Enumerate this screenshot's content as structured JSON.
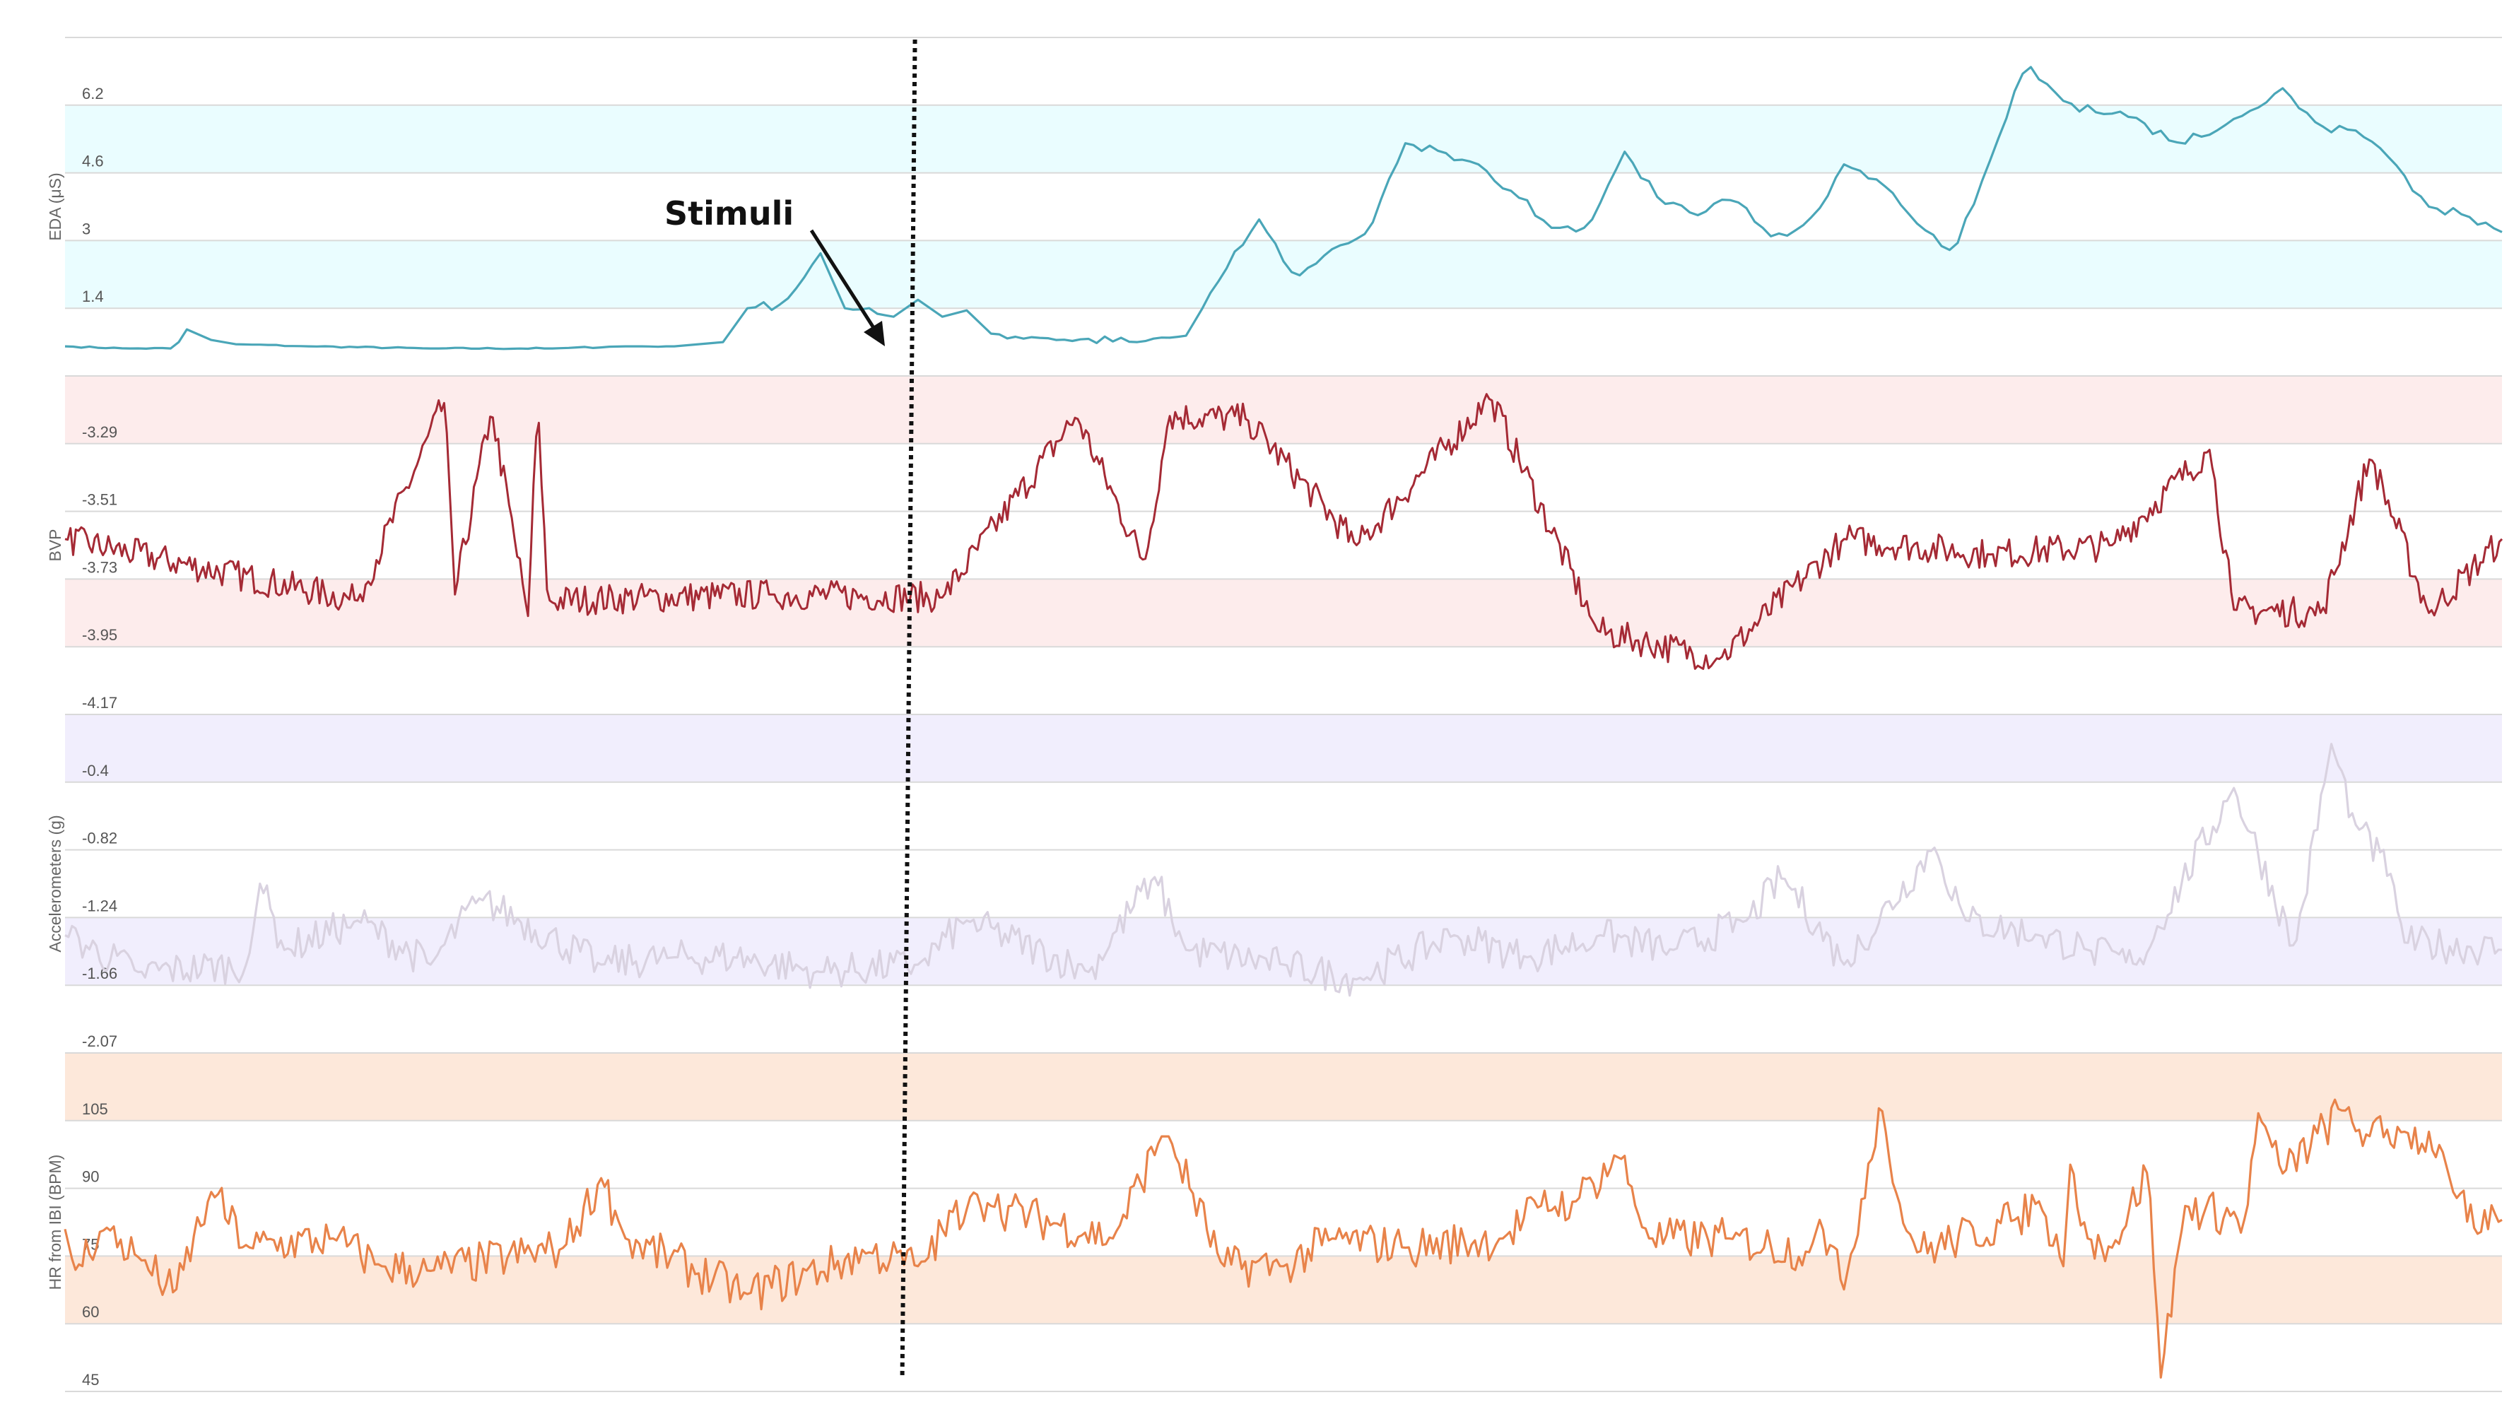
{
  "chart_data": [
    {
      "type": "line",
      "ylabel": "EDA (μS)",
      "ytick_labels": [
        "6.2",
        "4.6",
        "3",
        "1.4"
      ],
      "ylim": [
        -0.2,
        7.8
      ],
      "band_color": "#eafdff",
      "line_color": "#4aa6b8",
      "series": [
        {
          "x": [
            0,
            2.5,
            4.5,
            5,
            6,
            7,
            10,
            15,
            20,
            23,
            25,
            26,
            27,
            28,
            29.5,
            31,
            32,
            34,
            35,
            36,
            37,
            38,
            40,
            44,
            46,
            47.5,
            49,
            50.5,
            52,
            53.5,
            55,
            56.5,
            58,
            59.5,
            61,
            62.5,
            64,
            65.5,
            67,
            68.5,
            70,
            71.5,
            73,
            74.5,
            76,
            77.5,
            79,
            80.5,
            82,
            83.5,
            85,
            86.5,
            88,
            89.5,
            91,
            92.5,
            94,
            95.5,
            97,
            98.5,
            100
          ],
          "y": [
            0.5,
            0.45,
            0.45,
            0.9,
            0.65,
            0.55,
            0.5,
            0.45,
            0.45,
            0.5,
            0.5,
            0.55,
            0.6,
            1.4,
            1.5,
            2.7,
            1.4,
            1.2,
            1.6,
            1.2,
            1.35,
            0.8,
            0.7,
            0.6,
            0.75,
            2.2,
            3.5,
            2.1,
            2.8,
            3.2,
            5.3,
            5.1,
            4.8,
            4.1,
            3.3,
            3.3,
            5.1,
            3.9,
            3.6,
            4.0,
            3.1,
            3.4,
            4.8,
            4.4,
            3.4,
            2.7,
            4.9,
            7.2,
            6.3,
            6.0,
            5.9,
            5.3,
            5.5,
            6.0,
            6.6,
            5.7,
            5.6,
            4.9,
            3.8,
            3.6,
            3.2
          ]
        }
      ]
    },
    {
      "type": "line",
      "ylabel": "BVP",
      "ytick_labels": [
        "-3.29",
        "-3.51",
        "-3.73",
        "-3.95",
        "-4.17"
      ],
      "ylim": [
        -4.17,
        -3.07
      ],
      "band_color": "#fdecec",
      "line_color": "#a52a35",
      "series": [
        {
          "x": [
            0,
            12,
            15.6,
            16,
            17.5,
            19,
            19.4,
            19.8,
            29,
            36,
            41.5,
            44.3,
            45.3,
            48.5,
            53,
            58.5,
            62.9,
            67.9,
            73,
            79,
            84,
            88,
            89,
            92.6,
            94.6,
            97,
            100
          ],
          "y": [
            -3.6,
            -3.8,
            -3.15,
            -3.78,
            -3.18,
            -3.85,
            -3.15,
            -3.8,
            -3.78,
            -3.79,
            -3.2,
            -3.68,
            -3.2,
            -3.21,
            -3.62,
            -3.14,
            -3.9,
            -3.99,
            -3.6,
            -3.65,
            -3.62,
            -3.31,
            -3.83,
            -3.84,
            -3.33,
            -3.84,
            -3.6
          ]
        }
      ]
    },
    {
      "type": "line",
      "ylabel": "Accelerometers (g)",
      "ytick_labels": [
        "-0.4",
        "-0.82",
        "-1.24",
        "-1.66",
        "-2.07"
      ],
      "ylim": [
        -2.5,
        -0.2
      ],
      "band_color": "#f1eefd",
      "line_color": "#d9d2e0",
      "series": [
        {
          "x": [
            0,
            3,
            7.5,
            8,
            9,
            12,
            15,
            17,
            22,
            25,
            27.5,
            31,
            35,
            37,
            42,
            44.7,
            46,
            50,
            53,
            57,
            60,
            63,
            66,
            69,
            70.5,
            73,
            76.7,
            78,
            81,
            83,
            85,
            89,
            91.5,
            93,
            94,
            95.5,
            96,
            100
          ],
          "y": [
            -1.7,
            -1.95,
            -1.9,
            -1.35,
            -1.8,
            -1.6,
            -1.9,
            -1.45,
            -1.9,
            -1.85,
            -1.85,
            -1.95,
            -1.9,
            -1.6,
            -1.95,
            -1.3,
            -1.8,
            -1.9,
            -2.0,
            -1.7,
            -1.85,
            -1.7,
            -1.8,
            -1.6,
            -1.3,
            -1.9,
            -1.1,
            -1.6,
            -1.7,
            -1.8,
            -1.9,
            -0.7,
            -1.8,
            -0.4,
            -0.95,
            -1.3,
            -1.75,
            -1.8
          ]
        }
      ]
    },
    {
      "type": "line",
      "ylabel": "HR from IBI (BPM)",
      "ytick_labels": [
        "105",
        "90",
        "75",
        "60",
        "45"
      ],
      "ylim": [
        45,
        118
      ],
      "band_color": "#fde8da",
      "line_color": "#e8834a",
      "series": [
        {
          "x": [
            0,
            0.4,
            1.5,
            3,
            4.5,
            6,
            7.5,
            11,
            15,
            13,
            20.5,
            22,
            23,
            28,
            33,
            35,
            37.3,
            38,
            43,
            45,
            45.3,
            47.5,
            50,
            52,
            55,
            59,
            60.5,
            62,
            63.8,
            65,
            68.3,
            71.6,
            72,
            73,
            74.5,
            75,
            76,
            80,
            81,
            82,
            82.3,
            83,
            84,
            85.5,
            86,
            87,
            89.5,
            90,
            91,
            93.5,
            94.5,
            96,
            97.5,
            98,
            99,
            100
          ],
          "y": [
            80,
            71,
            80,
            74,
            66,
            88,
            76,
            78,
            71,
            72,
            76,
            91,
            78,
            66,
            75,
            72,
            88,
            85,
            78,
            100,
            100,
            72,
            72,
            78,
            76,
            78,
            85,
            86,
            96,
            78,
            78,
            75,
            82,
            67,
            108,
            90,
            75,
            82,
            86,
            72,
            95,
            78,
            76,
            93,
            48,
            85,
            82,
            105,
            92,
            106,
            100,
            101,
            98,
            88,
            79,
            82
          ]
        }
      ]
    }
  ],
  "annotation": {
    "label": "Stimuli",
    "x": 34.5
  },
  "grid_color": "#d9d9d9",
  "marker_color": "#111111",
  "annotation_color": "#111111"
}
